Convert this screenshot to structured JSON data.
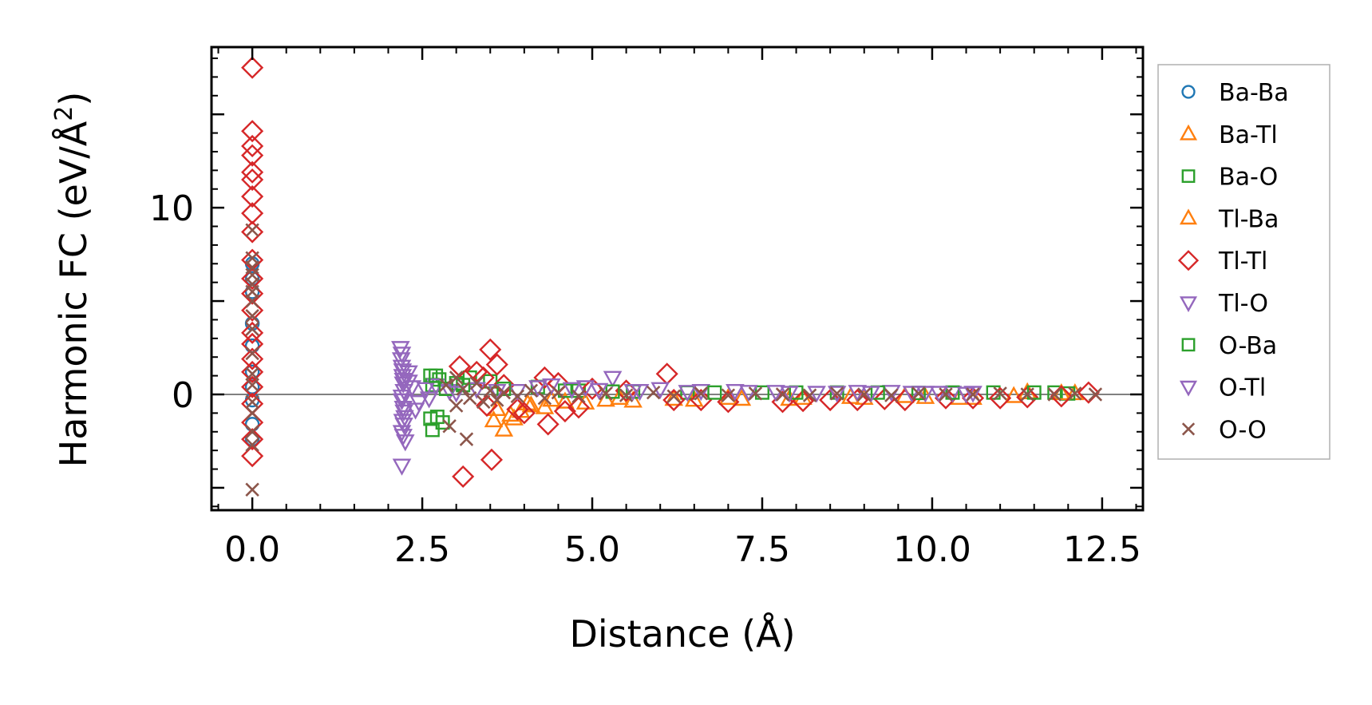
{
  "chart_data": {
    "type": "scatter",
    "xlabel": "Distance (Å)",
    "ylabel_main": "Harmonic FC (eV/Å",
    "ylabel_sup": "2",
    "ylabel_close": ")",
    "xlim": [
      -0.6,
      13.1
    ],
    "ylim": [
      -6.2,
      18.6
    ],
    "x_ticks": [
      {
        "value": 0.0,
        "label": "0.0"
      },
      {
        "value": 2.5,
        "label": "2.5"
      },
      {
        "value": 5.0,
        "label": "5.0"
      },
      {
        "value": 7.5,
        "label": "7.5"
      },
      {
        "value": 10.0,
        "label": "10.0"
      },
      {
        "value": 12.5,
        "label": "12.5"
      }
    ],
    "y_ticks": [
      {
        "value": 0,
        "label": "0"
      },
      {
        "value": 10,
        "label": "10"
      }
    ],
    "zero_line": 0,
    "legend_position": "outside-right",
    "series": [
      {
        "name": "Ba-Ba",
        "marker": "circle",
        "color": "#1f77b4",
        "points": [
          [
            0,
            7.0
          ],
          [
            0,
            6.2
          ],
          [
            0,
            5.5
          ],
          [
            0,
            3.8
          ],
          [
            0,
            2.6
          ],
          [
            0,
            1.2
          ],
          [
            0,
            0.4
          ],
          [
            0,
            -0.3
          ],
          [
            0,
            -1.6
          ],
          [
            0,
            -2.4
          ]
        ]
      },
      {
        "name": "Ba-Tl",
        "marker": "triangle-up",
        "color": "#ff7f0e",
        "points": [
          [
            3.55,
            -1.4
          ],
          [
            3.7,
            -1.9
          ],
          [
            3.8,
            -1.1
          ],
          [
            3.95,
            -0.9
          ],
          [
            4.1,
            -0.6
          ],
          [
            4.3,
            -0.7
          ],
          [
            4.6,
            -0.4
          ],
          [
            5.2,
            -0.3
          ],
          [
            5.6,
            -0.35
          ],
          [
            6.5,
            -0.3
          ],
          [
            7.2,
            -0.25
          ],
          [
            8.1,
            -0.2
          ],
          [
            9.0,
            -0.2
          ],
          [
            9.9,
            -0.15
          ],
          [
            10.6,
            -0.2
          ],
          [
            11.4,
            0.1
          ],
          [
            12.1,
            0.05
          ]
        ]
      },
      {
        "name": "Ba-O",
        "marker": "square",
        "color": "#2ca02c",
        "points": [
          [
            2.62,
            1.0
          ],
          [
            2.65,
            0.5
          ],
          [
            2.62,
            -1.3
          ],
          [
            2.65,
            -1.9
          ],
          [
            2.75,
            0.8
          ],
          [
            2.8,
            -1.5
          ],
          [
            3.0,
            0.6
          ],
          [
            3.2,
            0.9
          ],
          [
            3.5,
            0.7
          ],
          [
            4.2,
            0.4
          ],
          [
            4.8,
            0.2
          ],
          [
            5.6,
            0.15
          ],
          [
            6.4,
            0.1
          ],
          [
            7.5,
            0.1
          ],
          [
            8.6,
            0.1
          ],
          [
            9.8,
            0.08
          ],
          [
            10.9,
            0.1
          ],
          [
            11.8,
            0.1
          ],
          [
            12.0,
            0.05
          ]
        ]
      },
      {
        "name": "Tl-Ba",
        "marker": "triangle-up",
        "color": "#ff7f0e",
        "points": [
          [
            3.6,
            -0.8
          ],
          [
            3.85,
            -1.3
          ],
          [
            4.05,
            -0.5
          ],
          [
            4.4,
            -0.3
          ],
          [
            4.9,
            -0.45
          ],
          [
            5.4,
            -0.2
          ],
          [
            6.2,
            -0.25
          ],
          [
            7.0,
            -0.2
          ],
          [
            7.9,
            -0.25
          ],
          [
            8.8,
            -0.15
          ],
          [
            9.6,
            -0.1
          ],
          [
            10.4,
            -0.2
          ],
          [
            11.2,
            -0.1
          ],
          [
            11.9,
            0.05
          ]
        ]
      },
      {
        "name": "Tl-Tl",
        "marker": "diamond",
        "color": "#d62728",
        "points": [
          [
            0,
            17.5
          ],
          [
            0,
            14.1
          ],
          [
            0,
            13.3
          ],
          [
            0,
            12.8
          ],
          [
            0,
            11.9
          ],
          [
            0,
            11.5
          ],
          [
            0,
            10.6
          ],
          [
            0,
            9.7
          ],
          [
            0,
            8.7
          ],
          [
            0,
            7.2
          ],
          [
            0,
            6.2
          ],
          [
            0,
            5.4
          ],
          [
            0,
            4.5
          ],
          [
            0,
            3.3
          ],
          [
            0,
            2.7
          ],
          [
            0,
            1.9
          ],
          [
            0,
            1.2
          ],
          [
            0,
            0.4
          ],
          [
            0,
            -0.5
          ],
          [
            0,
            -1.5
          ],
          [
            0,
            -2.4
          ],
          [
            0,
            -3.3
          ],
          [
            3.05,
            1.5
          ],
          [
            3.1,
            -4.4
          ],
          [
            3.3,
            1.2
          ],
          [
            3.4,
            0.9
          ],
          [
            3.45,
            -0.6
          ],
          [
            3.5,
            2.4
          ],
          [
            3.52,
            -3.5
          ],
          [
            3.6,
            1.6
          ],
          [
            3.7,
            0.5
          ],
          [
            3.9,
            -0.8
          ],
          [
            4.0,
            -1.0
          ],
          [
            4.3,
            0.9
          ],
          [
            4.35,
            -1.6
          ],
          [
            4.5,
            0.6
          ],
          [
            4.6,
            -0.9
          ],
          [
            4.8,
            -0.7
          ],
          [
            5.0,
            0.3
          ],
          [
            5.5,
            0.2
          ],
          [
            6.1,
            1.1
          ],
          [
            6.2,
            -0.3
          ],
          [
            6.6,
            -0.3
          ],
          [
            7.0,
            -0.4
          ],
          [
            7.8,
            -0.4
          ],
          [
            8.1,
            -0.35
          ],
          [
            8.5,
            -0.3
          ],
          [
            8.9,
            -0.3
          ],
          [
            9.3,
            -0.25
          ],
          [
            9.6,
            -0.3
          ],
          [
            10.2,
            -0.2
          ],
          [
            10.6,
            -0.2
          ],
          [
            11.0,
            -0.2
          ],
          [
            11.4,
            -0.15
          ],
          [
            11.9,
            -0.1
          ],
          [
            12.3,
            0.1
          ]
        ]
      },
      {
        "name": "Tl-O",
        "marker": "triangle-down",
        "color": "#9467bd",
        "points": [
          [
            2.18,
            2.5
          ],
          [
            2.19,
            1.9
          ],
          [
            2.2,
            1.5
          ],
          [
            2.21,
            1.0
          ],
          [
            2.22,
            0.6
          ],
          [
            2.23,
            0.2
          ],
          [
            2.2,
            -0.3
          ],
          [
            2.22,
            -0.7
          ],
          [
            2.24,
            -1.2
          ],
          [
            2.23,
            -1.6
          ],
          [
            2.2,
            -2.0
          ],
          [
            2.25,
            -2.5
          ],
          [
            2.2,
            -3.8
          ],
          [
            2.3,
            1.2
          ],
          [
            2.35,
            0.4
          ],
          [
            2.4,
            -0.8
          ],
          [
            2.55,
            0.3
          ],
          [
            2.7,
            0.5
          ],
          [
            2.9,
            0.2
          ],
          [
            3.3,
            0.3
          ],
          [
            3.9,
            0.2
          ],
          [
            4.4,
            0.5
          ],
          [
            4.9,
            0.4
          ],
          [
            5.3,
            0.9
          ],
          [
            5.6,
            0.2
          ],
          [
            6.0,
            0.3
          ],
          [
            6.6,
            0.2
          ],
          [
            7.1,
            0.2
          ],
          [
            7.7,
            0.15
          ],
          [
            8.3,
            0.1
          ],
          [
            8.9,
            0.15
          ],
          [
            9.4,
            0.15
          ],
          [
            9.9,
            0.1
          ],
          [
            10.3,
            0.1
          ],
          [
            10.6,
            0.1
          ]
        ]
      },
      {
        "name": "O-Ba",
        "marker": "square",
        "color": "#2ca02c",
        "points": [
          [
            2.7,
            1.0
          ],
          [
            2.72,
            -1.2
          ],
          [
            2.85,
            0.3
          ],
          [
            3.1,
            0.5
          ],
          [
            3.7,
            0.3
          ],
          [
            4.6,
            0.2
          ],
          [
            5.3,
            0.15
          ],
          [
            6.8,
            0.1
          ],
          [
            8.0,
            0.1
          ],
          [
            9.2,
            0.1
          ],
          [
            10.3,
            0.1
          ],
          [
            11.5,
            0.1
          ]
        ]
      },
      {
        "name": "O-Tl",
        "marker": "triangle-down",
        "color": "#9467bd",
        "points": [
          [
            2.2,
            2.2
          ],
          [
            2.21,
            1.3
          ],
          [
            2.22,
            0.8
          ],
          [
            2.2,
            -0.1
          ],
          [
            2.23,
            -0.9
          ],
          [
            2.21,
            -1.4
          ],
          [
            2.22,
            -2.2
          ],
          [
            2.3,
            0.7
          ],
          [
            2.45,
            -0.4
          ],
          [
            2.6,
            -0.2
          ],
          [
            3.0,
            0.1
          ],
          [
            3.6,
            0.2
          ],
          [
            4.2,
            0.4
          ],
          [
            4.7,
            0.3
          ],
          [
            5.1,
            0.25
          ],
          [
            5.7,
            0.2
          ],
          [
            6.4,
            0.15
          ],
          [
            7.3,
            0.15
          ],
          [
            7.9,
            0.1
          ],
          [
            8.6,
            0.1
          ],
          [
            9.1,
            0.1
          ],
          [
            9.7,
            0.1
          ],
          [
            10.1,
            0.1
          ],
          [
            10.5,
            0.05
          ]
        ]
      },
      {
        "name": "O-O",
        "marker": "x",
        "color": "#8c564b",
        "points": [
          [
            0,
            8.8
          ],
          [
            0,
            7.3
          ],
          [
            0,
            6.8
          ],
          [
            0,
            6.4
          ],
          [
            0,
            5.9
          ],
          [
            0,
            5.5
          ],
          [
            0,
            5.0
          ],
          [
            0,
            4.2
          ],
          [
            0,
            3.5
          ],
          [
            0,
            2.2
          ],
          [
            0,
            1.1
          ],
          [
            0,
            0.5
          ],
          [
            0,
            -0.4
          ],
          [
            0,
            -1.0
          ],
          [
            0,
            -2.0
          ],
          [
            0,
            -2.7
          ],
          [
            0,
            -5.1
          ],
          [
            2.85,
            0.5
          ],
          [
            2.9,
            -1.7
          ],
          [
            3.0,
            0.9
          ],
          [
            3.0,
            -0.6
          ],
          [
            3.1,
            0.3
          ],
          [
            3.15,
            -2.4
          ],
          [
            3.2,
            -0.2
          ],
          [
            3.3,
            0.6
          ],
          [
            3.4,
            -0.4
          ],
          [
            3.5,
            0.2
          ],
          [
            3.6,
            -0.3
          ],
          [
            3.7,
            0.1
          ],
          [
            3.9,
            -0.1
          ],
          [
            4.1,
            0.2
          ],
          [
            4.3,
            -0.2
          ],
          [
            4.5,
            0.1
          ],
          [
            4.8,
            -0.1
          ],
          [
            5.2,
            0.05
          ],
          [
            5.5,
            -0.05
          ],
          [
            5.9,
            0.1
          ],
          [
            6.2,
            -0.1
          ],
          [
            6.6,
            0.05
          ],
          [
            7.0,
            -0.05
          ],
          [
            7.4,
            0.05
          ],
          [
            7.8,
            0.0
          ],
          [
            8.2,
            -0.05
          ],
          [
            8.6,
            0.05
          ],
          [
            9.0,
            0.0
          ],
          [
            9.4,
            -0.05
          ],
          [
            9.8,
            0.05
          ],
          [
            10.2,
            0.0
          ],
          [
            10.6,
            0.0
          ],
          [
            11.0,
            0.05
          ],
          [
            11.4,
            0.0
          ],
          [
            11.8,
            0.0
          ],
          [
            12.1,
            0.05
          ],
          [
            12.4,
            0.0
          ]
        ]
      }
    ]
  }
}
